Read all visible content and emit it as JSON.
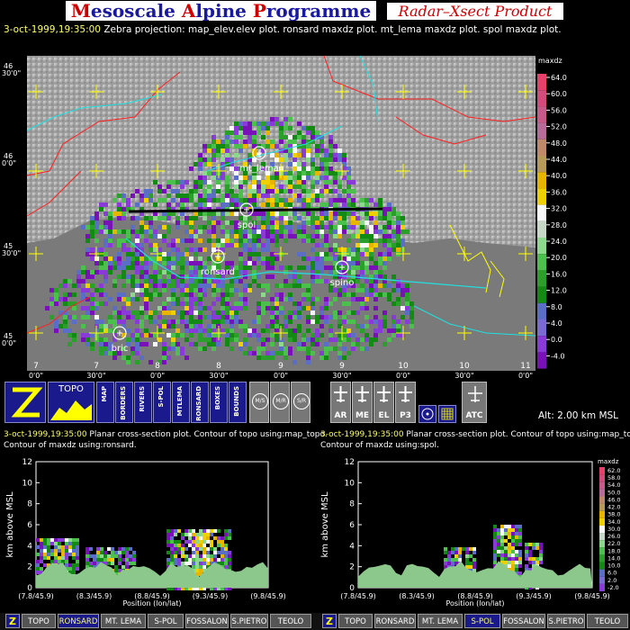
{
  "header": {
    "title_M": "M",
    "title_1": "esoscale ",
    "title_A": "A",
    "title_2": "lpine ",
    "title_P": "P",
    "title_3": "rogramme",
    "product": "Radar–Xsect Product"
  },
  "main": {
    "date": "3-oct-1999,19:35:00",
    "description": " Zebra projection: map_elev.elev plot. ronsard maxdz plot. mt_lema maxdz plot. spol maxdz plot.",
    "lat_labels": [
      {
        "deg": "46",
        "min": "30'0\""
      },
      {
        "deg": "46",
        "min": "0'0\""
      },
      {
        "deg": "45",
        "min": "30'0\""
      },
      {
        "deg": "45",
        "min": "0'0\""
      }
    ],
    "lon_labels": [
      {
        "deg": "7",
        "min": "0'0\""
      },
      {
        "deg": "7",
        "min": "30'0\""
      },
      {
        "deg": "8",
        "min": "0'0\""
      },
      {
        "deg": "8",
        "min": "30'0\""
      },
      {
        "deg": "9",
        "min": "0'0\""
      },
      {
        "deg": "9",
        "min": "30'0\""
      },
      {
        "deg": "10",
        "min": "0'0\""
      },
      {
        "deg": "10",
        "min": "30'0\""
      },
      {
        "deg": "11",
        "min": "0'0\""
      }
    ],
    "radars": [
      "mt_lema",
      "spol",
      "ronsard",
      "spino",
      "bric"
    ],
    "colorbar": {
      "title": "maxdz",
      "ticks": [
        "64.0",
        "60.0",
        "56.0",
        "52.0",
        "48.0",
        "44.0",
        "40.0",
        "36.0",
        "32.0",
        "28.0",
        "24.0",
        "20.0",
        "16.0",
        "12.0",
        "8.0",
        "4.0",
        "0.0",
        "-4.0"
      ],
      "colors": [
        "#e8406a",
        "#d44a7a",
        "#c85a8a",
        "#b86a98",
        "#c08a6a",
        "#b89a58",
        "#e8b400",
        "#f0d000",
        "#f8f8f8",
        "#c8d8c8",
        "#8cd88c",
        "#4cc04c",
        "#2aa02a",
        "#138a13",
        "#5a6ec8",
        "#7a6ad4",
        "#8a3ad8",
        "#7a10b8"
      ]
    }
  },
  "toolbar": {
    "topo": "TOPO",
    "vertical_buttons": [
      "MAP",
      "BORDERS",
      "RIVERS",
      "S-POL",
      "MTLEMA",
      "RONSARD",
      "BOXES",
      "BOUNDS"
    ],
    "circle_buttons": [
      "M/S",
      "M/R",
      "S/R"
    ],
    "aircraft": [
      "AR",
      "ME",
      "EL",
      "P3"
    ],
    "atc": "ATC",
    "altitude": "Alt: 2.00 km MSL"
  },
  "left_xsect": {
    "date": "3-oct-1999,19:35:00",
    "line1": " Planar cross-section plot. Contour of topo using:map_topo.",
    "line2": "Contour of maxdz using:ronsard.",
    "yaxis": "km above MSL",
    "xaxis": "Position (lon/lat)",
    "yticks": [
      "0",
      "2",
      "4",
      "6",
      "8",
      "10",
      "12"
    ],
    "xticks": [
      "(7.8/45.9)",
      "(8.3/45.9)",
      "(8.8/45.9)",
      "(9.3/45.9)",
      "(9.8/45.9)"
    ]
  },
  "right_xsect": {
    "date": "3-oct-1999,19:35:00",
    "line1": " Planar cross-section plot. Contour of topo using:map_topo.",
    "line2": "Contour of maxdz using:spol.",
    "yaxis": "km above MSL",
    "xaxis": "Position (lon/lat)",
    "yticks": [
      "0",
      "2",
      "4",
      "6",
      "8",
      "10",
      "12"
    ],
    "xticks": [
      "(7.8/45.9)",
      "(8.3/45.9)",
      "(8.8/45.9)",
      "(9.3/45.9)",
      "(9.8/45.9)"
    ],
    "colorbar": {
      "title": "maxdz",
      "ticks": [
        "62.0",
        "58.0",
        "54.0",
        "50.0",
        "46.0",
        "42.0",
        "38.0",
        "34.0",
        "30.0",
        "26.0",
        "22.0",
        "18.0",
        "14.0",
        "10.0",
        "6.0",
        "2.0",
        "-2.0"
      ]
    }
  },
  "bottom_bar": {
    "left": [
      "Z",
      "TOPO",
      "RONSARD",
      "MT. LEMA",
      "S-POL",
      "FOSSALON",
      "S.PIETRO",
      "TEOLO"
    ],
    "right": [
      "Z",
      "TOPO",
      "RONSARD",
      "MT. LEMA",
      "S-POL",
      "FOSSALON",
      "S.PIETRO",
      "TEOLO"
    ]
  }
}
